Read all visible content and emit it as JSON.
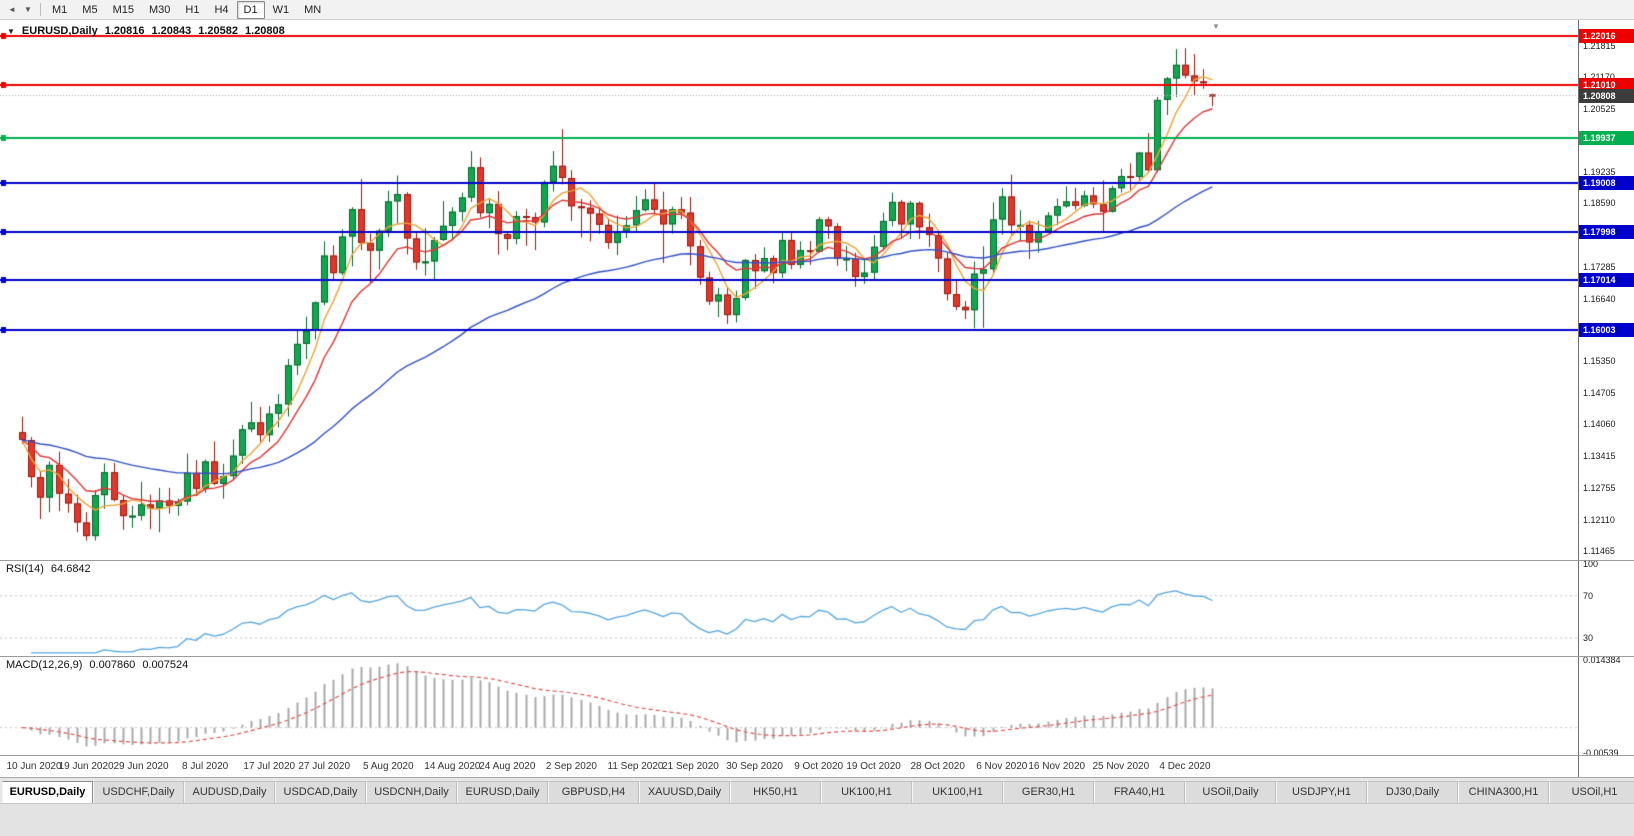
{
  "toolbar": {
    "left_icons": [
      {
        "name": "chart-back-icon",
        "glyph": "◄"
      },
      {
        "name": "chart-dropdown-icon",
        "glyph": "▼"
      }
    ],
    "timeframes": [
      {
        "label": "M1",
        "active": false
      },
      {
        "label": "M5",
        "active": false
      },
      {
        "label": "M15",
        "active": false
      },
      {
        "label": "M30",
        "active": false
      },
      {
        "label": "H1",
        "active": false
      },
      {
        "label": "H4",
        "active": false
      },
      {
        "label": "D1",
        "active": true
      },
      {
        "label": "W1",
        "active": false
      },
      {
        "label": "MN",
        "active": false
      }
    ]
  },
  "chart": {
    "dropdown_glyph": "▼",
    "shift_marker_glyph": "▼",
    "symbol_title": "EURUSD,Daily",
    "open": "1.20816",
    "high": "1.20843",
    "low": "1.20582",
    "close": "1.20808"
  },
  "indicators": {
    "rsi": {
      "name": "RSI(14)",
      "value": "64.6842"
    },
    "macd": {
      "name": "MACD(12,26,9)",
      "value1": "0.007860",
      "value2": "0.007524"
    }
  },
  "chart_data": {
    "type": "candlestick",
    "symbol": "EURUSD",
    "period": "Daily",
    "current_price": 1.20808,
    "current_price_label": "1.20808",
    "price_axis_ticks": [
      "1.21815",
      "1.21170",
      "1.20525",
      "1.19880",
      "1.19235",
      "1.18590",
      "1.17945",
      "1.17285",
      "1.16640",
      "1.15995",
      "1.15350",
      "1.14705",
      "1.14060",
      "1.13415",
      "1.12755",
      "1.12110",
      "1.11465"
    ],
    "hlines": [
      {
        "price": 1.22016,
        "label": "1.22016",
        "color": "#ee0000"
      },
      {
        "price": 1.2101,
        "label": "1.21010",
        "color": "#ee0000"
      },
      {
        "price": 1.19937,
        "label": "1.19937",
        "color": "#00b050"
      },
      {
        "price": 1.19008,
        "label": "1.19008",
        "color": "#0000cd"
      },
      {
        "price": 1.17998,
        "label": "1.17998",
        "color": "#0000cd"
      },
      {
        "price": 1.17014,
        "label": "1.17014",
        "color": "#0000cd"
      },
      {
        "price": 1.16003,
        "label": "1.16003",
        "color": "#0000cd"
      }
    ],
    "moving_averages": [
      {
        "type": "sma",
        "period": 5,
        "color": "#f0a338"
      },
      {
        "type": "ema",
        "period": 10,
        "color": "#e03636"
      },
      {
        "type": "ema",
        "period": 45,
        "color": "#3452c8"
      }
    ],
    "rsi": {
      "period": 14,
      "color": "#57a7e3",
      "levels": [
        70,
        30
      ],
      "range": [
        15,
        100
      ],
      "axis_labels": [
        {
          "label": "100",
          "value": 100
        },
        {
          "label": "70",
          "value": 70
        },
        {
          "label": "30",
          "value": 30
        }
      ]
    },
    "macd": {
      "fast": 12,
      "slow": 26,
      "signal": 9,
      "hist_color": "#a9a9a9",
      "signal_color": "#e05555",
      "range": [
        -0.005394,
        0.014384
      ],
      "axis_labels": [
        {
          "label": "0.014384",
          "value": 0.014384
        },
        {
          "label": "-0.00539",
          "value": -0.005394
        }
      ]
    },
    "timeline": [
      {
        "label": "10 Jun 2020",
        "i": 0
      },
      {
        "label": "19 Jun 2020",
        "i": 7
      },
      {
        "label": "29 Jun 2020",
        "i": 13
      },
      {
        "label": "8 Jul 2020",
        "i": 20
      },
      {
        "label": "17 Jul 2020",
        "i": 27
      },
      {
        "label": "27 Jul 2020",
        "i": 33
      },
      {
        "label": "5 Aug 2020",
        "i": 40
      },
      {
        "label": "14 Aug 2020",
        "i": 47
      },
      {
        "label": "24 Aug 2020",
        "i": 53
      },
      {
        "label": "2 Sep 2020",
        "i": 60
      },
      {
        "label": "11 Sep 2020",
        "i": 67
      },
      {
        "label": "21 Sep 2020",
        "i": 73
      },
      {
        "label": "30 Sep 2020",
        "i": 80
      },
      {
        "label": "9 Oct 2020",
        "i": 87
      },
      {
        "label": "19 Oct 2020",
        "i": 93
      },
      {
        "label": "28 Oct 2020",
        "i": 100
      },
      {
        "label": "6 Nov 2020",
        "i": 107
      },
      {
        "label": "16 Nov 2020",
        "i": 113
      },
      {
        "label": "25 Nov 2020",
        "i": 120
      },
      {
        "label": "4 Dec 2020",
        "i": 127
      }
    ],
    "candles": [
      [
        1.139,
        1.1422,
        1.1366,
        1.1374
      ],
      [
        1.1374,
        1.138,
        1.1277,
        1.1298
      ],
      [
        1.1298,
        1.131,
        1.1212,
        1.1256
      ],
      [
        1.1256,
        1.133,
        1.1226,
        1.1323
      ],
      [
        1.1323,
        1.135,
        1.1228,
        1.1264
      ],
      [
        1.1264,
        1.1294,
        1.1225,
        1.1244
      ],
      [
        1.1244,
        1.1262,
        1.1185,
        1.1205
      ],
      [
        1.1205,
        1.1226,
        1.1168,
        1.1177
      ],
      [
        1.1177,
        1.1271,
        1.1168,
        1.1261
      ],
      [
        1.1261,
        1.1326,
        1.1233,
        1.1308
      ],
      [
        1.1308,
        1.1327,
        1.1248,
        1.1251
      ],
      [
        1.1251,
        1.1262,
        1.119,
        1.1218
      ],
      [
        1.1218,
        1.1239,
        1.1194,
        1.1219
      ],
      [
        1.1219,
        1.1288,
        1.1209,
        1.1242
      ],
      [
        1.1242,
        1.1262,
        1.1191,
        1.1234
      ],
      [
        1.1234,
        1.1276,
        1.1185,
        1.125
      ],
      [
        1.125,
        1.1276,
        1.1223,
        1.1239
      ],
      [
        1.1239,
        1.1254,
        1.1219,
        1.1248
      ],
      [
        1.1248,
        1.1346,
        1.124,
        1.1307
      ],
      [
        1.1307,
        1.1333,
        1.1259,
        1.1274
      ],
      [
        1.1274,
        1.1334,
        1.1266,
        1.133
      ],
      [
        1.133,
        1.1371,
        1.1281,
        1.1284
      ],
      [
        1.1284,
        1.1325,
        1.1254,
        1.13
      ],
      [
        1.13,
        1.1375,
        1.1291,
        1.1342
      ],
      [
        1.1342,
        1.1405,
        1.1325,
        1.1396
      ],
      [
        1.1396,
        1.1452,
        1.139,
        1.141
      ],
      [
        1.141,
        1.1442,
        1.137,
        1.1384
      ],
      [
        1.1384,
        1.1444,
        1.137,
        1.1428
      ],
      [
        1.1428,
        1.1468,
        1.14,
        1.1447
      ],
      [
        1.1447,
        1.154,
        1.1422,
        1.1527
      ],
      [
        1.1527,
        1.1601,
        1.1507,
        1.1571
      ],
      [
        1.1571,
        1.1627,
        1.154,
        1.1598
      ],
      [
        1.1598,
        1.1658,
        1.158,
        1.1656
      ],
      [
        1.1656,
        1.1781,
        1.165,
        1.1752
      ],
      [
        1.1752,
        1.1773,
        1.17,
        1.1716
      ],
      [
        1.1716,
        1.1806,
        1.1712,
        1.1791
      ],
      [
        1.1791,
        1.1851,
        1.173,
        1.1847
      ],
      [
        1.1847,
        1.1909,
        1.1763,
        1.1778
      ],
      [
        1.1778,
        1.1797,
        1.1696,
        1.1762
      ],
      [
        1.1762,
        1.1807,
        1.1723,
        1.1803
      ],
      [
        1.1803,
        1.1885,
        1.179,
        1.1863
      ],
      [
        1.1863,
        1.1916,
        1.1817,
        1.1878
      ],
      [
        1.1878,
        1.1882,
        1.1754,
        1.1787
      ],
      [
        1.1787,
        1.1798,
        1.1723,
        1.1738
      ],
      [
        1.1738,
        1.1808,
        1.1711,
        1.174
      ],
      [
        1.174,
        1.179,
        1.17,
        1.1784
      ],
      [
        1.1784,
        1.1864,
        1.1782,
        1.1813
      ],
      [
        1.1813,
        1.1851,
        1.1782,
        1.1842
      ],
      [
        1.1842,
        1.1881,
        1.1822,
        1.1871
      ],
      [
        1.1871,
        1.1966,
        1.1862,
        1.1933
      ],
      [
        1.1933,
        1.1953,
        1.183,
        1.1839
      ],
      [
        1.1839,
        1.1868,
        1.1808,
        1.1858
      ],
      [
        1.1858,
        1.1884,
        1.1754,
        1.1796
      ],
      [
        1.1796,
        1.1801,
        1.1763,
        1.1786
      ],
      [
        1.1786,
        1.1843,
        1.1775,
        1.1833
      ],
      [
        1.1833,
        1.1848,
        1.1772,
        1.1831
      ],
      [
        1.1831,
        1.184,
        1.1763,
        1.182
      ],
      [
        1.182,
        1.1906,
        1.181,
        1.1903
      ],
      [
        1.1903,
        1.1966,
        1.1883,
        1.1936
      ],
      [
        1.1936,
        1.2011,
        1.1898,
        1.1911
      ],
      [
        1.1911,
        1.1927,
        1.1823,
        1.1853
      ],
      [
        1.1853,
        1.1868,
        1.1789,
        1.185
      ],
      [
        1.185,
        1.1865,
        1.1781,
        1.1838
      ],
      [
        1.1838,
        1.1849,
        1.1797,
        1.1815
      ],
      [
        1.1815,
        1.1828,
        1.1766,
        1.1778
      ],
      [
        1.1778,
        1.1834,
        1.1753,
        1.1801
      ],
      [
        1.1801,
        1.1833,
        1.1788,
        1.1814
      ],
      [
        1.1814,
        1.1874,
        1.18,
        1.1845
      ],
      [
        1.1845,
        1.1888,
        1.1842,
        1.1867
      ],
      [
        1.1867,
        1.19,
        1.1838,
        1.1846
      ],
      [
        1.1846,
        1.1883,
        1.1737,
        1.1816
      ],
      [
        1.1816,
        1.1852,
        1.1797,
        1.1847
      ],
      [
        1.1847,
        1.1872,
        1.1827,
        1.184
      ],
      [
        1.184,
        1.1872,
        1.1732,
        1.1771
      ],
      [
        1.1771,
        1.1784,
        1.1692,
        1.1707
      ],
      [
        1.1707,
        1.1719,
        1.1651,
        1.1658
      ],
      [
        1.1658,
        1.1686,
        1.1626,
        1.1672
      ],
      [
        1.1672,
        1.1688,
        1.1612,
        1.163
      ],
      [
        1.163,
        1.168,
        1.1615,
        1.1665
      ],
      [
        1.1665,
        1.1745,
        1.166,
        1.1743
      ],
      [
        1.1743,
        1.1755,
        1.1684,
        1.172
      ],
      [
        1.172,
        1.1769,
        1.1717,
        1.1747
      ],
      [
        1.1747,
        1.1752,
        1.1695,
        1.1716
      ],
      [
        1.1716,
        1.1798,
        1.1706,
        1.1784
      ],
      [
        1.1784,
        1.1798,
        1.1724,
        1.1733
      ],
      [
        1.1733,
        1.1781,
        1.1725,
        1.1763
      ],
      [
        1.1763,
        1.1782,
        1.1733,
        1.176
      ],
      [
        1.176,
        1.1831,
        1.1758,
        1.1826
      ],
      [
        1.1826,
        1.1831,
        1.1787,
        1.1812
      ],
      [
        1.1812,
        1.1818,
        1.1731,
        1.1745
      ],
      [
        1.1745,
        1.1772,
        1.172,
        1.1746
      ],
      [
        1.1746,
        1.1758,
        1.1688,
        1.1708
      ],
      [
        1.1708,
        1.1747,
        1.1694,
        1.1717
      ],
      [
        1.1717,
        1.1794,
        1.1703,
        1.177
      ],
      [
        1.177,
        1.184,
        1.1762,
        1.1823
      ],
      [
        1.1823,
        1.1881,
        1.1812,
        1.1862
      ],
      [
        1.1862,
        1.1866,
        1.1787,
        1.1816
      ],
      [
        1.1816,
        1.1864,
        1.1786,
        1.186
      ],
      [
        1.186,
        1.1863,
        1.1786,
        1.181
      ],
      [
        1.181,
        1.1838,
        1.177,
        1.1794
      ],
      [
        1.1794,
        1.18,
        1.1718,
        1.1746
      ],
      [
        1.1746,
        1.1758,
        1.166,
        1.1673
      ],
      [
        1.1673,
        1.1704,
        1.164,
        1.1647
      ],
      [
        1.1647,
        1.1659,
        1.1622,
        1.164
      ],
      [
        1.164,
        1.174,
        1.1603,
        1.1715
      ],
      [
        1.1715,
        1.1771,
        1.1604,
        1.1724
      ],
      [
        1.1724,
        1.1861,
        1.1712,
        1.1826
      ],
      [
        1.1826,
        1.189,
        1.1795,
        1.1873
      ],
      [
        1.1873,
        1.1918,
        1.1795,
        1.1814
      ],
      [
        1.1814,
        1.1845,
        1.1781,
        1.1815
      ],
      [
        1.1815,
        1.1824,
        1.1745,
        1.1779
      ],
      [
        1.1779,
        1.1823,
        1.1758,
        1.1802
      ],
      [
        1.1802,
        1.1841,
        1.1799,
        1.1834
      ],
      [
        1.1834,
        1.1869,
        1.1814,
        1.1853
      ],
      [
        1.1853,
        1.1894,
        1.185,
        1.1863
      ],
      [
        1.1863,
        1.1891,
        1.1846,
        1.1854
      ],
      [
        1.1854,
        1.1885,
        1.1851,
        1.1875
      ],
      [
        1.1875,
        1.1892,
        1.1849,
        1.1857
      ],
      [
        1.1857,
        1.1906,
        1.18,
        1.1842
      ],
      [
        1.1842,
        1.1895,
        1.184,
        1.189
      ],
      [
        1.189,
        1.193,
        1.1881,
        1.1915
      ],
      [
        1.1915,
        1.1941,
        1.1886,
        1.1913
      ],
      [
        1.1913,
        1.1964,
        1.1907,
        1.1963
      ],
      [
        1.1963,
        1.2003,
        1.1924,
        1.1927
      ],
      [
        1.1927,
        1.2077,
        1.1923,
        1.2071
      ],
      [
        1.2071,
        1.2118,
        1.204,
        1.2115
      ],
      [
        1.2115,
        1.2175,
        1.2077,
        1.2143
      ],
      [
        1.2143,
        1.2177,
        1.2115,
        1.2121
      ],
      [
        1.2121,
        1.2165,
        1.2079,
        1.2109
      ],
      [
        1.2109,
        1.2134,
        1.2094,
        1.2106
      ],
      [
        1.2082,
        1.2084,
        1.2058,
        1.2081
      ]
    ]
  },
  "tabs": [
    {
      "label": "EURUSD,Daily",
      "active": true
    },
    {
      "label": "USDCHF,Daily",
      "active": false
    },
    {
      "label": "AUDUSD,Daily",
      "active": false
    },
    {
      "label": "USDCAD,Daily",
      "active": false
    },
    {
      "label": "USDCNH,Daily",
      "active": false
    },
    {
      "label": "EURUSD,Daily",
      "active": false
    },
    {
      "label": "GBPUSD,H4",
      "active": false
    },
    {
      "label": "XAUUSD,Daily",
      "active": false
    },
    {
      "label": "HK50,H1",
      "active": false
    },
    {
      "label": "UK100,H1",
      "active": false
    },
    {
      "label": "UK100,H1",
      "active": false
    },
    {
      "label": "GER30,H1",
      "active": false
    },
    {
      "label": "FRA40,H1",
      "active": false
    },
    {
      "label": "USOil,Daily",
      "active": false
    },
    {
      "label": "USDJPY,H1",
      "active": false
    },
    {
      "label": "DJ30,Daily",
      "active": false
    },
    {
      "label": "CHINA300,H1",
      "active": false
    },
    {
      "label": "USOil,H1",
      "active": false
    }
  ],
  "colors": {
    "up_fill": "#0fa84e",
    "up_border": "#04692c",
    "down_fill": "#e53529",
    "down_border": "#9c1a10",
    "badge_current": "#3c3c3c",
    "level_dash": "#c8c8c8",
    "bid_line": "#aaaaaa"
  }
}
